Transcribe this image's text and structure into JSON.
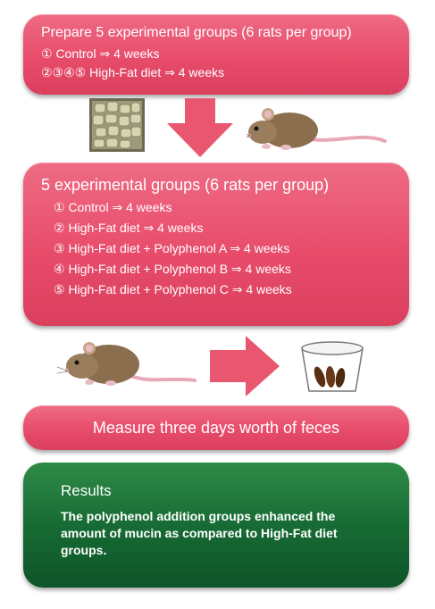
{
  "step1": {
    "title": "Prepare 5 experimental groups (6 rats per group)",
    "lines": [
      "① Control ⇒ 4 weeks",
      "②③④⑤ High-Fat diet ⇒ 4 weeks"
    ]
  },
  "step2": {
    "title": "5 experimental groups (6 rats per group)",
    "groups": [
      "① Control ⇒ 4 weeks",
      "② High-Fat diet ⇒ 4 weeks",
      "③ High-Fat diet + Polyphenol A ⇒ 4 weeks",
      "④ High-Fat diet + Polyphenol B ⇒ 4 weeks",
      "⑤ High-Fat diet + Polyphenol C ⇒ 4 weeks"
    ]
  },
  "step3": {
    "title": "Measure three days worth of feces"
  },
  "results": {
    "title": "Results",
    "text": "The polyphenol addition groups enhanced the amount of mucin as compared to High-Fat diet groups."
  },
  "colors": {
    "pink": "#e84c6b",
    "green": "#176b34",
    "arrow": "#e8566f"
  },
  "icons": [
    "food-pellets-image",
    "rat-illustration",
    "down-arrow-icon",
    "right-arrow-icon",
    "feces-cup-image"
  ]
}
